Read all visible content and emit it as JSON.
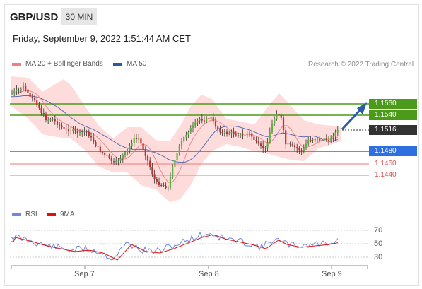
{
  "header": {
    "symbol": "GBP/USD",
    "timeframe": "30 MIN"
  },
  "timestamp": "Friday, September 9, 2022 1:51:44 AM CET",
  "legend_main": [
    {
      "label": "MA 20 + Bollinger Bands",
      "color": "#f08080"
    },
    {
      "label": "MA 50",
      "color": "#2a5ba0"
    }
  ],
  "legend_rsi": [
    {
      "label": "RSI",
      "color": "#6f88d8"
    },
    {
      "label": "9MA",
      "color": "#e01010"
    }
  ],
  "credit": "Research © 2022 Trading Central",
  "price_levels": [
    {
      "label": "1.1560",
      "style": "green-filled"
    },
    {
      "label": "1.1540",
      "style": "green-filled"
    },
    {
      "label": "1.1516",
      "style": "current"
    },
    {
      "label": "1.1480",
      "style": "blue-filled"
    },
    {
      "label": "1.1460",
      "style": "red-text"
    },
    {
      "label": "1.1440",
      "style": "red-text"
    }
  ],
  "rsi_levels": [
    "70",
    "50",
    "30"
  ],
  "x_axis": [
    "Sep 7",
    "Sep 8",
    "Sep 9"
  ],
  "colors": {
    "green": "#4c9a1a",
    "blue": "#2f6fe0",
    "red": "#e05050",
    "current": "#333333",
    "arrow": "#2a5ca8",
    "band": "#ffd6d6"
  }
}
